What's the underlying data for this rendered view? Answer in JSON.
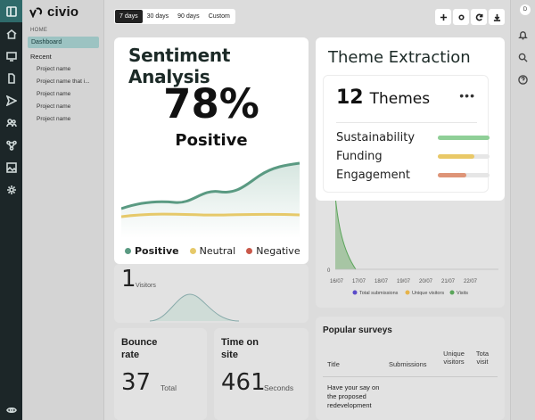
{
  "brand": {
    "name": "civio"
  },
  "sidebar": {
    "home_label": "HOME",
    "dashboard_label": "Dashboard",
    "recent_label": "Recent",
    "projects": [
      "Project name",
      "Project name that i...",
      "Project name",
      "Project name",
      "Project name"
    ]
  },
  "rail_icons": [
    "collapse-icon",
    "home-icon",
    "monitor-icon",
    "file-icon",
    "send-icon",
    "users-icon",
    "flow-icon",
    "image-icon",
    "settings-icon",
    "eye-icon"
  ],
  "toolbar": {
    "ranges": [
      "7 days",
      "30 days",
      "90 days",
      "Custom"
    ],
    "active_range": "7 days",
    "tools": [
      "plus-icon",
      "gear-icon",
      "refresh-icon",
      "download-icon"
    ]
  },
  "user": {
    "initial": "D"
  },
  "sentiment": {
    "title": "Sentiment Analysis",
    "percent": "78%",
    "label": "Positive",
    "legend": [
      {
        "label": "Positive",
        "color": "#5a9a82"
      },
      {
        "label": "Neutral",
        "color": "#e6c96a"
      },
      {
        "label": "Negative",
        "color": "#c9584a"
      }
    ]
  },
  "themes": {
    "title": "Theme Extraction",
    "count": "12",
    "count_label": "Themes",
    "more": "•••",
    "items": [
      {
        "label": "Sustainability",
        "color": "#8fcf97",
        "fill": 1.0
      },
      {
        "label": "Funding",
        "color": "#e9c867",
        "fill": 0.7
      },
      {
        "label": "Engagement",
        "color": "#de9477",
        "fill": 0.55
      }
    ]
  },
  "visits_chart": {
    "y_zero": "0",
    "x_labels": [
      "16/07",
      "17/07",
      "18/07",
      "19/07",
      "20/07",
      "21/07",
      "22/07"
    ],
    "legend": [
      {
        "label": "Total submissions",
        "color": "#5a4bc9"
      },
      {
        "label": "Unique visitors",
        "color": "#e6b44a"
      },
      {
        "label": "Visits",
        "color": "#5aa55a"
      }
    ]
  },
  "visitors": {
    "value": "1",
    "label": "Visitors"
  },
  "bounce": {
    "title_line1": "Bounce",
    "title_line2": "rate",
    "value": "37",
    "unit": "Total"
  },
  "time_on_site": {
    "title_line1": "Time on",
    "title_line2": "site",
    "value": "461",
    "unit": "Seconds"
  },
  "popular": {
    "title": "Popular surveys",
    "headers": [
      "Title",
      "Submissions",
      "Unique visitors",
      "Tota visit"
    ],
    "rows": [
      [
        "Have your say on the proposed redevelopment"
      ]
    ]
  }
}
